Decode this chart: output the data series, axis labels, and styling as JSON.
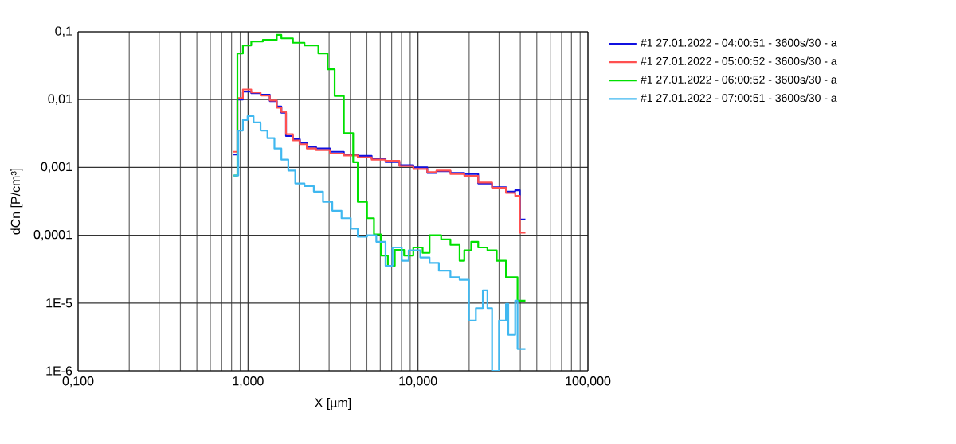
{
  "chart_data": {
    "type": "step",
    "xlabel": "X [µm]",
    "ylabel": "dCn [P/cm³]",
    "log": "xy",
    "grid": true,
    "legend": "right",
    "xlim": [
      0.1,
      100
    ],
    "ylim": [
      1e-06,
      0.1
    ],
    "xticks": [
      {
        "value": 0.1,
        "label": "0,100"
      },
      {
        "value": 1,
        "label": "1,000"
      },
      {
        "value": 10,
        "label": "10,000"
      },
      {
        "value": 100,
        "label": "100,000"
      }
    ],
    "yticks": [
      {
        "value": 1e-06,
        "label": "1E-6"
      },
      {
        "value": 1e-05,
        "label": "1E-5"
      },
      {
        "value": 0.0001,
        "label": "0,0001"
      },
      {
        "value": 0.001,
        "label": "0,001"
      },
      {
        "value": 0.01,
        "label": "0,01"
      },
      {
        "value": 0.1,
        "label": "0,1"
      }
    ],
    "series": [
      {
        "name": "#1 27.01.2022 - 04:00:51 - 3600s/30 -  a",
        "color": "#1010e0",
        "x": [
          0.813,
          0.866,
          0.933,
          1.045,
          1.185,
          1.343,
          1.476,
          1.571,
          1.673,
          1.838,
          2.019,
          2.218,
          2.515,
          3.035,
          3.664,
          4.424,
          5.34,
          6.445,
          7.78,
          9.39,
          11.34,
          12.85,
          15.52,
          18.73,
          22.61,
          27.29,
          32.94,
          37.34,
          39.75,
          42.87
        ],
        "values": [
          0.00155,
          0.01,
          0.0131,
          0.0124,
          0.0118,
          0.0095,
          0.0079,
          0.0064,
          0.0029,
          0.0026,
          0.0023,
          0.002,
          0.0019,
          0.0017,
          0.00155,
          0.00148,
          0.00135,
          0.0012,
          0.00108,
          0.001,
          0.00083,
          0.00088,
          0.00083,
          0.0008,
          0.00058,
          0.00051,
          0.00044,
          0.00046,
          0.000171,
          0.000171
        ]
      },
      {
        "name": "#1 27.01.2022 - 05:00:52 - 3600s/30 -  a",
        "color": "#ff5050",
        "x": [
          0.813,
          0.866,
          0.933,
          1.045,
          1.185,
          1.343,
          1.476,
          1.571,
          1.673,
          1.838,
          2.019,
          2.218,
          2.515,
          3.035,
          3.664,
          4.424,
          5.34,
          6.445,
          7.78,
          9.39,
          11.34,
          12.85,
          15.52,
          18.73,
          22.61,
          27.29,
          32.94,
          37.34,
          39.75,
          42.87
        ],
        "values": [
          0.0017,
          0.0105,
          0.0141,
          0.0128,
          0.0115,
          0.0097,
          0.0076,
          0.0066,
          0.0031,
          0.0025,
          0.0022,
          0.0019,
          0.0018,
          0.0016,
          0.0015,
          0.0014,
          0.0013,
          0.00125,
          0.00105,
          0.00095,
          0.00085,
          0.0009,
          0.0008,
          0.00075,
          0.0006,
          0.0005,
          0.00042,
          0.00038,
          0.000109,
          0.000109
        ]
      },
      {
        "name": "#1 27.01.2022 - 06:00:52 - 3600s/30 -  a",
        "color": "#00e000",
        "x": [
          0.823,
          0.866,
          0.933,
          1.045,
          1.222,
          1.476,
          1.571,
          1.838,
          2.149,
          2.594,
          2.941,
          3.233,
          3.664,
          4.155,
          4.424,
          5.013,
          5.51,
          6.053,
          6.65,
          7.306,
          8.283,
          9.39,
          10.65,
          11.7,
          13.69,
          15.52,
          17.58,
          18.73,
          20.57,
          22.61,
          25.63,
          29.06,
          32.94,
          38.53,
          42.87
        ],
        "values": [
          0.00076,
          0.048,
          0.063,
          0.072,
          0.076,
          0.09,
          0.08,
          0.069,
          0.063,
          0.048,
          0.028,
          0.0113,
          0.0032,
          0.00119,
          0.00031,
          0.000178,
          0.000103,
          5e-05,
          3.54e-05,
          6.08e-05,
          5e-05,
          6.6e-05,
          5.5e-05,
          0.0001,
          8.7e-05,
          7.2e-05,
          4.2e-05,
          6e-05,
          8e-05,
          6.6e-05,
          6e-05,
          4.2e-05,
          2.4e-05,
          1.08e-05,
          1.08e-05
        ]
      },
      {
        "name": "#1 27.01.2022 - 07:00:51 - 3600s/30 -  a",
        "color": "#40b8f0",
        "x": [
          0.823,
          0.877,
          0.933,
          0.994,
          1.078,
          1.185,
          1.301,
          1.43,
          1.571,
          1.726,
          1.897,
          2.149,
          2.438,
          2.762,
          3.132,
          3.551,
          4.024,
          4.424,
          5.013,
          5.686,
          6.445,
          7.081,
          8.028,
          8.819,
          10.32,
          11.7,
          13.27,
          15.52,
          17.58,
          19.94,
          21.91,
          24.07,
          25.63,
          27.29,
          29.98,
          32.94,
          33.99,
          37.34,
          38.53,
          42.87
        ],
        "values": [
          0.00076,
          0.0035,
          0.005,
          0.0057,
          0.0046,
          0.0035,
          0.0027,
          0.0019,
          0.0013,
          0.0009,
          0.00058,
          0.00053,
          0.00044,
          0.00031,
          0.00023,
          0.000178,
          0.000125,
          9.5e-05,
          0.0001,
          8e-05,
          3.54e-05,
          6.6e-05,
          4.2e-05,
          6e-05,
          4.7e-05,
          3.9e-05,
          3e-05,
          2.4e-05,
          2.2e-05,
          5.5e-06,
          8.4e-06,
          1.54e-05,
          8.4e-06,
          1e-06,
          5.5e-06,
          9.7e-06,
          3.4e-06,
          1.08e-05,
          2.1e-06,
          2.1e-06
        ]
      }
    ]
  }
}
